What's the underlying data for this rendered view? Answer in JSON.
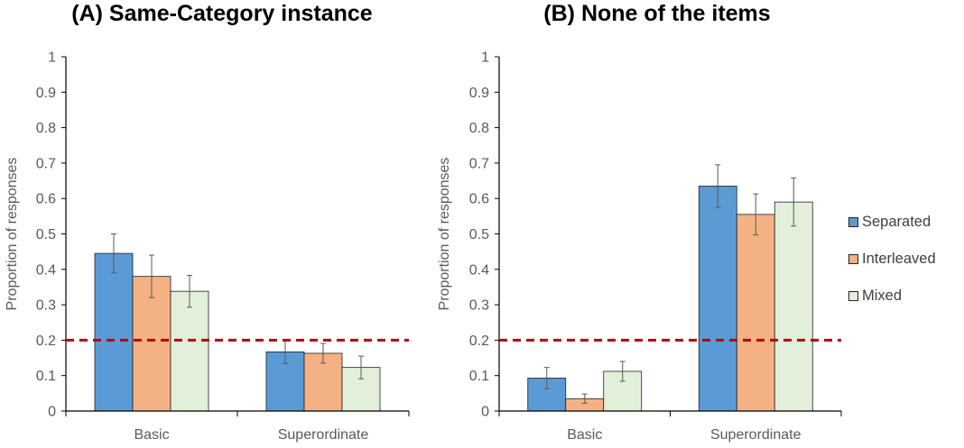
{
  "chart_data": [
    {
      "type": "bar",
      "title": "(A) Same-Category instance",
      "ylabel": "Proportion of responses",
      "xlabel": "",
      "categories": [
        "Basic",
        "Superordinate"
      ],
      "ylim": [
        0,
        1
      ],
      "yticks": [
        "0",
        "0.1",
        "0.2",
        "0.3",
        "0.4",
        "0.5",
        "0.6",
        "0.7",
        "0.8",
        "0.9",
        "1"
      ],
      "reference_line": 0.2,
      "series": [
        {
          "name": "Separated",
          "values": [
            0.445,
            0.167
          ],
          "error": [
            0.055,
            0.033
          ]
        },
        {
          "name": "Interleaved",
          "values": [
            0.38,
            0.163
          ],
          "error": [
            0.06,
            0.028
          ]
        },
        {
          "name": "Mixed",
          "values": [
            0.338,
            0.123
          ],
          "error": [
            0.045,
            0.032
          ]
        }
      ]
    },
    {
      "type": "bar",
      "title": "(B) None of the items",
      "ylabel": "Proportion of responses",
      "xlabel": "",
      "categories": [
        "Basic",
        "Superordinate"
      ],
      "ylim": [
        0,
        1
      ],
      "yticks": [
        "0",
        "0.1",
        "0.2",
        "0.3",
        "0.4",
        "0.5",
        "0.6",
        "0.7",
        "0.8",
        "0.9",
        "1"
      ],
      "reference_line": 0.2,
      "series": [
        {
          "name": "Separated",
          "values": [
            0.093,
            0.635
          ],
          "error": [
            0.03,
            0.06
          ]
        },
        {
          "name": "Interleaved",
          "values": [
            0.035,
            0.555
          ],
          "error": [
            0.013,
            0.058
          ]
        },
        {
          "name": "Mixed",
          "values": [
            0.112,
            0.59
          ],
          "error": [
            0.028,
            0.068
          ]
        }
      ]
    }
  ],
  "legend": {
    "items": [
      {
        "label": "Separated",
        "color": "#5b9bd5"
      },
      {
        "label": "Interleaved",
        "color": "#f4b183"
      },
      {
        "label": "Mixed",
        "color": "#e2efda"
      }
    ]
  },
  "colors": {
    "reference_line": "#c00000",
    "axis": "#000000",
    "tick_text": "#595959",
    "title_text": "#000000"
  }
}
